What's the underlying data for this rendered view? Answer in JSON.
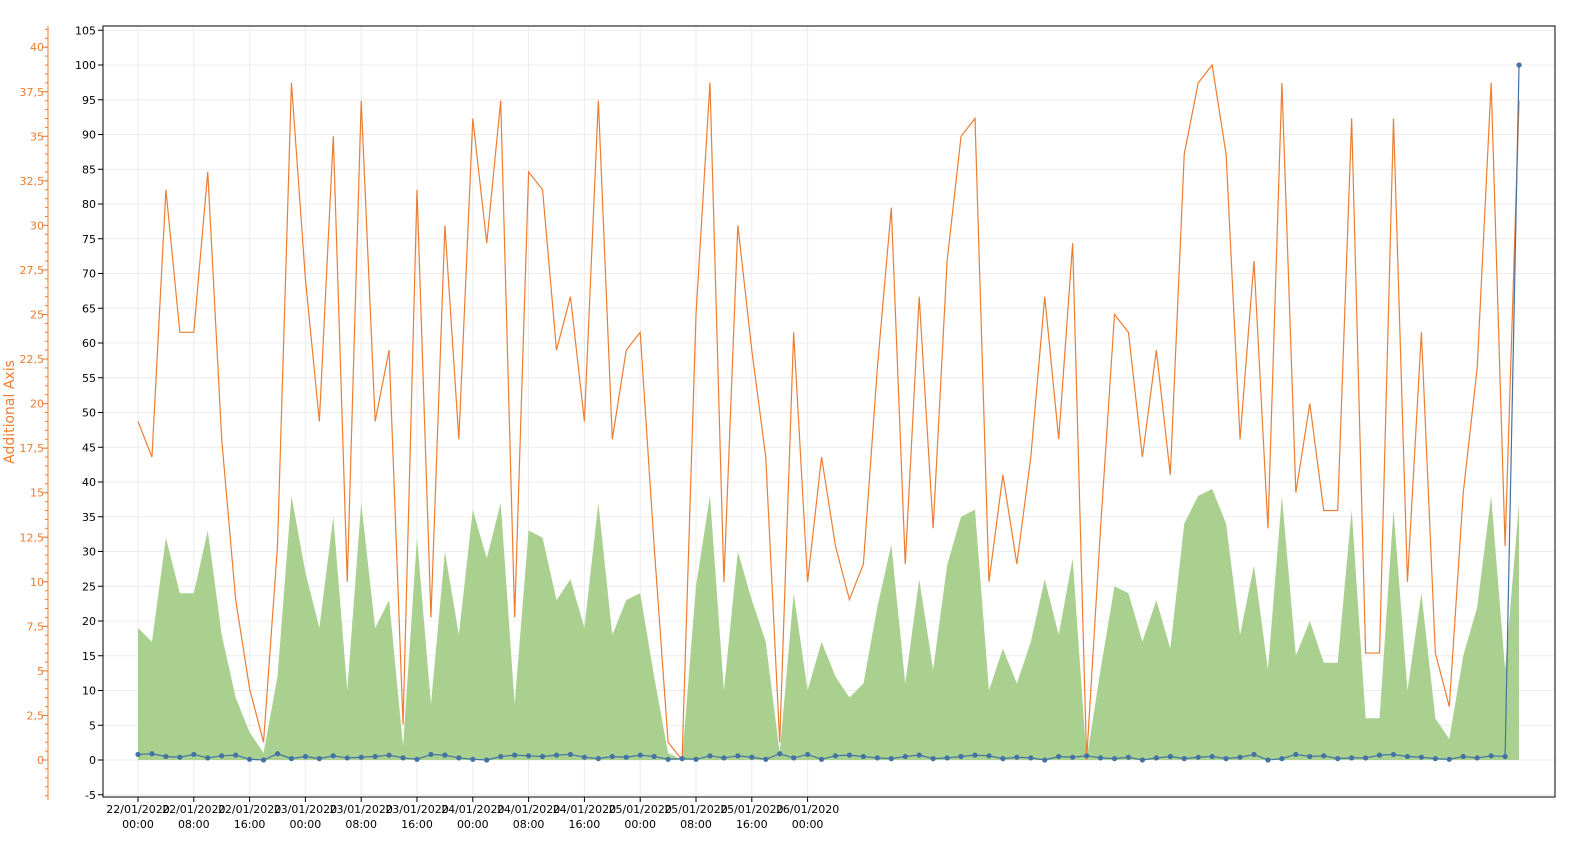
{
  "colors": {
    "area": "#a9d08e",
    "orange": "#ed7d31",
    "blue": "#4472a4",
    "grid": "#ececec",
    "axis": "#000000"
  },
  "chart_data": {
    "type": "line",
    "grid": true,
    "legend": "none",
    "x": {
      "start": "22/01/2020 00:00",
      "step_hours": 2,
      "count": 100,
      "tick_labels": [
        [
          "22/01/2020",
          "00:00"
        ],
        [
          "22/01/2020",
          "08:00"
        ],
        [
          "22/01/2020",
          "16:00"
        ],
        [
          "23/01/2020",
          "00:00"
        ],
        [
          "23/01/2020",
          "08:00"
        ],
        [
          "23/01/2020",
          "16:00"
        ],
        [
          "24/01/2020",
          "00:00"
        ],
        [
          "24/01/2020",
          "08:00"
        ],
        [
          "24/01/2020",
          "16:00"
        ],
        [
          "25/01/2020",
          "00:00"
        ],
        [
          "25/01/2020",
          "08:00"
        ],
        [
          "25/01/2020",
          "16:00"
        ],
        [
          "26/01/2020",
          "00:00"
        ]
      ]
    },
    "y_left": {
      "label": "",
      "range": [
        -5,
        105
      ],
      "ticks": [
        "-5",
        "0",
        "5",
        "10",
        "15",
        "20",
        "25",
        "30",
        "35",
        "40",
        "45",
        "50",
        "55",
        "60",
        "65",
        "70",
        "75",
        "80",
        "85",
        "90",
        "95",
        "100",
        "105"
      ]
    },
    "y_additional": {
      "label": "Additional Axis",
      "range": [
        -2.5,
        41.25
      ],
      "ticks": [
        "0",
        "2,5",
        "5",
        "7,5",
        "10",
        "12,5",
        "15",
        "17,5",
        "20",
        "22,5",
        "25",
        "27,5",
        "30",
        "32,5",
        "35",
        "37,5",
        "40"
      ]
    },
    "series": [
      {
        "kind": "area",
        "axis": "left",
        "values": [
          19,
          17,
          32,
          24,
          24,
          33,
          18,
          9,
          4,
          1,
          12,
          38,
          27,
          19,
          35,
          10,
          37,
          19,
          23,
          2,
          32,
          8,
          30,
          18,
          36,
          29,
          37,
          8,
          33,
          32,
          23,
          26,
          19,
          37,
          18,
          23,
          24,
          12,
          1,
          0,
          25,
          38,
          10,
          30,
          23,
          17,
          1,
          24,
          10,
          17,
          12,
          9,
          11,
          22,
          31,
          11,
          26,
          13,
          28,
          35,
          36,
          10,
          16,
          11,
          17,
          26,
          18,
          29,
          0,
          13,
          25,
          24,
          17,
          23,
          16,
          34,
          38,
          39,
          34,
          18,
          28,
          13,
          38,
          15,
          20,
          14,
          14,
          36,
          6,
          6,
          36,
          10,
          24,
          6,
          3,
          15,
          22,
          38,
          13,
          37
        ]
      },
      {
        "kind": "line",
        "axis": "additional",
        "values": [
          19,
          17,
          32,
          24,
          24,
          33,
          18,
          9,
          4,
          1,
          12,
          38,
          27,
          19,
          35,
          10,
          37,
          19,
          23,
          2,
          32,
          8,
          30,
          18,
          36,
          29,
          37,
          8,
          33,
          32,
          23,
          26,
          19,
          37,
          18,
          23,
          24,
          12,
          1,
          0,
          25,
          38,
          10,
          30,
          23,
          17,
          1,
          24,
          10,
          17,
          12,
          9,
          11,
          22,
          31,
          11,
          26,
          13,
          28,
          35,
          36,
          10,
          16,
          11,
          17,
          26,
          18,
          29,
          0,
          13,
          25,
          24,
          17,
          23,
          16,
          34,
          38,
          39,
          34,
          18,
          28,
          13,
          38,
          15,
          20,
          14,
          14,
          36,
          6,
          6,
          36,
          10,
          24,
          6,
          3,
          15,
          22,
          38,
          12,
          37
        ]
      },
      {
        "kind": "line-markers",
        "axis": "left",
        "values": [
          0.8,
          0.9,
          0.5,
          0.4,
          0.8,
          0.3,
          0.6,
          0.7,
          0.1,
          0,
          0.9,
          0.2,
          0.5,
          0.2,
          0.6,
          0.3,
          0.4,
          0.5,
          0.7,
          0.3,
          0.1,
          0.8,
          0.7,
          0.3,
          0.1,
          0,
          0.5,
          0.7,
          0.6,
          0.5,
          0.7,
          0.8,
          0.4,
          0.2,
          0.5,
          0.4,
          0.7,
          0.5,
          0.1,
          0.2,
          0.1,
          0.6,
          0.3,
          0.6,
          0.4,
          0.1,
          0.9,
          0.3,
          0.8,
          0.1,
          0.6,
          0.7,
          0.5,
          0.3,
          0.2,
          0.5,
          0.7,
          0.2,
          0.3,
          0.5,
          0.7,
          0.6,
          0.2,
          0.4,
          0.3,
          0,
          0.5,
          0.4,
          0.6,
          0.3,
          0.2,
          0.4,
          0,
          0.3,
          0.5,
          0.2,
          0.4,
          0.5,
          0.2,
          0.4,
          0.8,
          0,
          0.2,
          0.8,
          0.5,
          0.6,
          0.2,
          0.3,
          0.3,
          0.7,
          0.8,
          0.5,
          0.4,
          0.2,
          0.1,
          0.5,
          0.3,
          0.6,
          0.5,
          100
        ]
      }
    ]
  }
}
